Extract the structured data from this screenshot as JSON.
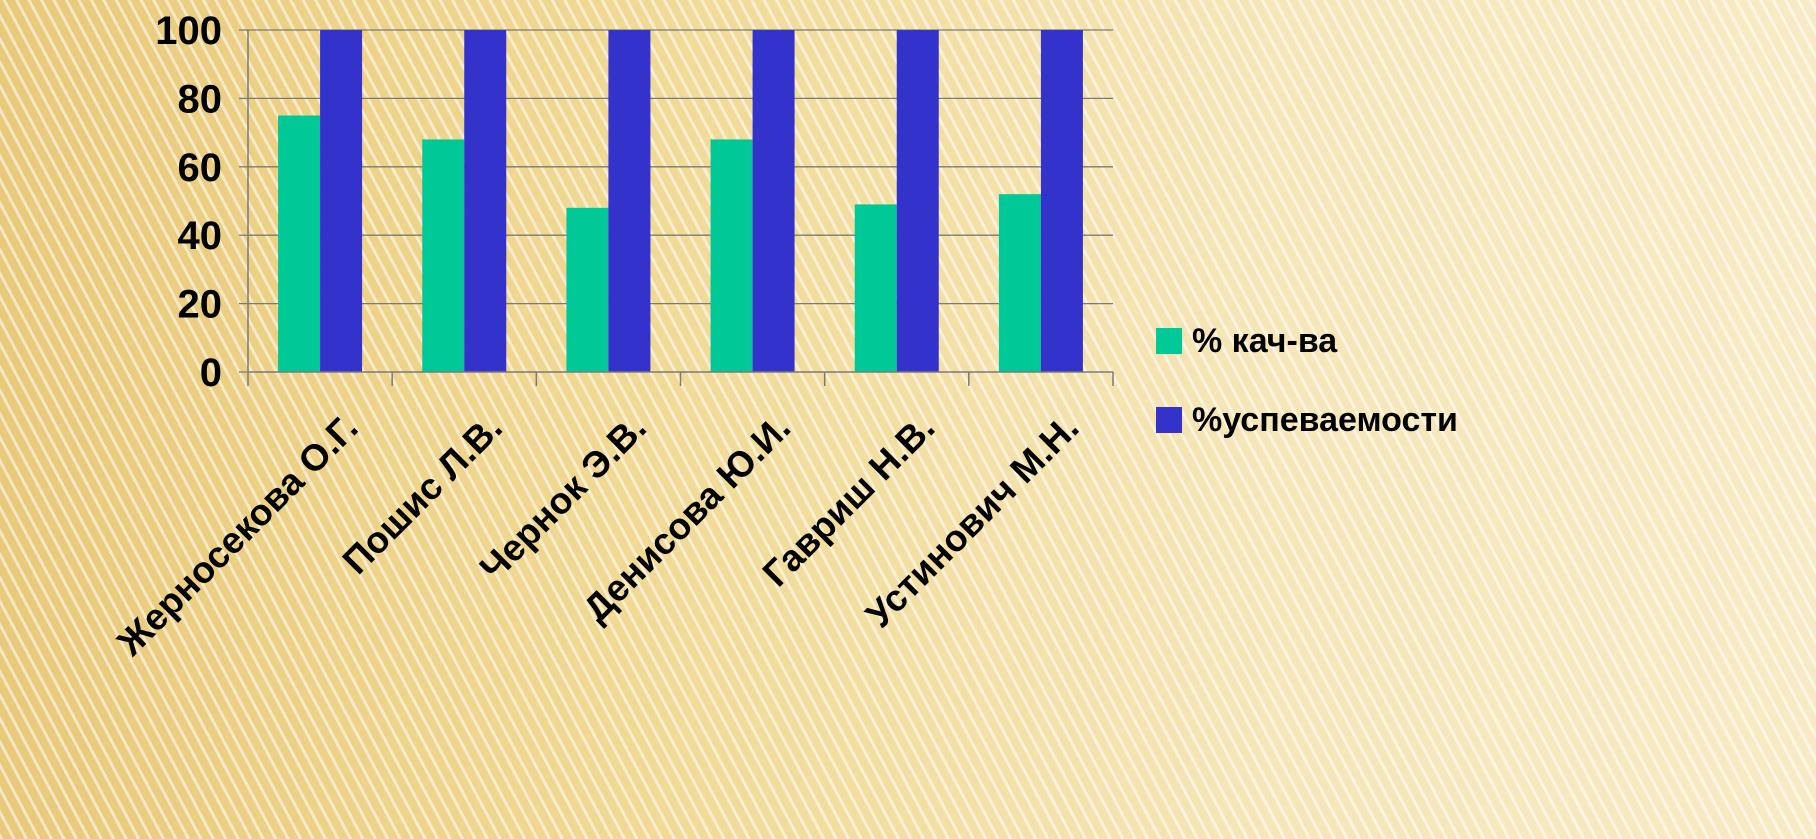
{
  "chart_data": {
    "type": "bar",
    "categories": [
      "Жерносекова О.Г.",
      "Пошис Л.В.",
      "Чернок Э.В.",
      "Денисова Ю.И.",
      "Гавриш Н.В.",
      "Устинович М.Н."
    ],
    "series": [
      {
        "name": "% кач-ва",
        "values": [
          75,
          68,
          48,
          68,
          49,
          52
        ],
        "color": "#00c896"
      },
      {
        "name": "%успеваемости",
        "values": [
          100,
          100,
          100,
          100,
          100,
          100
        ],
        "color": "#3333cc"
      }
    ],
    "yticks": [
      "0",
      "20",
      "40",
      "60",
      "80",
      "100"
    ],
    "ylim": [
      0,
      100
    ],
    "grid": true,
    "legend": "right",
    "title": "",
    "xlabel": "",
    "ylabel": ""
  }
}
